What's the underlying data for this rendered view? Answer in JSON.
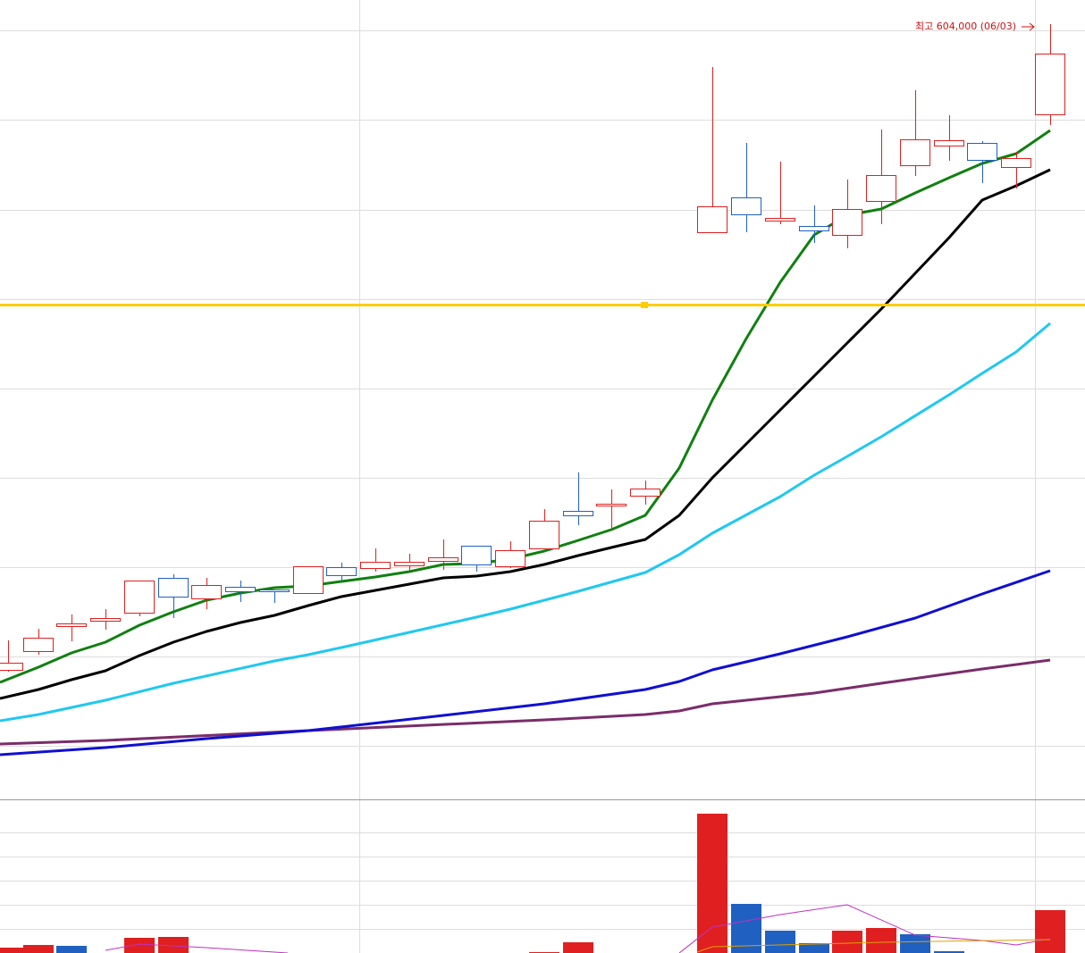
{
  "annotation": {
    "high_label": "최고 604,000 (06/03)"
  }
}
